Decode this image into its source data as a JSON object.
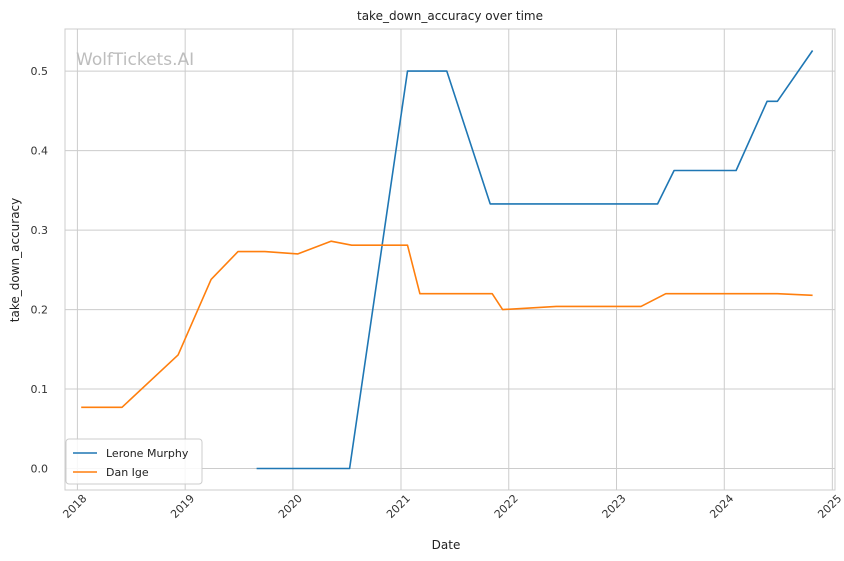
{
  "watermark": "WolfTickets.AI",
  "chart_data": {
    "type": "line",
    "title": "take_down_accuracy over time",
    "xlabel": "Date",
    "ylabel": "take_down_accuracy",
    "x_ticks": [
      "2018",
      "2019",
      "2020",
      "2021",
      "2022",
      "2023",
      "2024",
      "2025"
    ],
    "y_ticks": [
      "0.0",
      "0.1",
      "0.2",
      "0.3",
      "0.4",
      "0.5"
    ],
    "xlim": [
      "2017-11-20",
      "2025-01-10"
    ],
    "ylim": [
      -0.027,
      0.553
    ],
    "grid": true,
    "legend_position": "lower-left",
    "series": [
      {
        "name": "Lerone Murphy",
        "color": "#1f77b4",
        "points": [
          [
            "2019-08-31",
            0.0
          ],
          [
            "2020-07-11",
            0.0
          ],
          [
            "2021-01-23",
            0.5
          ],
          [
            "2021-06-05",
            0.5
          ],
          [
            "2021-10-30",
            0.333
          ],
          [
            "2023-05-20",
            0.333
          ],
          [
            "2023-07-15",
            0.375
          ],
          [
            "2024-02-10",
            0.375
          ],
          [
            "2024-05-25",
            0.462
          ],
          [
            "2024-06-29",
            0.462
          ],
          [
            "2024-10-26",
            0.526
          ]
        ]
      },
      {
        "name": "Dan Ige",
        "color": "#ff7f0e",
        "points": [
          [
            "2018-01-14",
            0.077
          ],
          [
            "2018-06-01",
            0.077
          ],
          [
            "2018-12-08",
            0.143
          ],
          [
            "2019-03-30",
            0.238
          ],
          [
            "2019-06-29",
            0.273
          ],
          [
            "2019-09-28",
            0.273
          ],
          [
            "2020-01-18",
            0.27
          ],
          [
            "2020-05-09",
            0.286
          ],
          [
            "2020-07-18",
            0.281
          ],
          [
            "2021-01-23",
            0.281
          ],
          [
            "2021-03-06",
            0.22
          ],
          [
            "2021-11-06",
            0.22
          ],
          [
            "2021-12-11",
            0.2
          ],
          [
            "2022-06-11",
            0.204
          ],
          [
            "2023-03-25",
            0.204
          ],
          [
            "2023-06-17",
            0.22
          ],
          [
            "2024-06-29",
            0.22
          ],
          [
            "2024-10-26",
            0.218
          ]
        ]
      }
    ]
  }
}
